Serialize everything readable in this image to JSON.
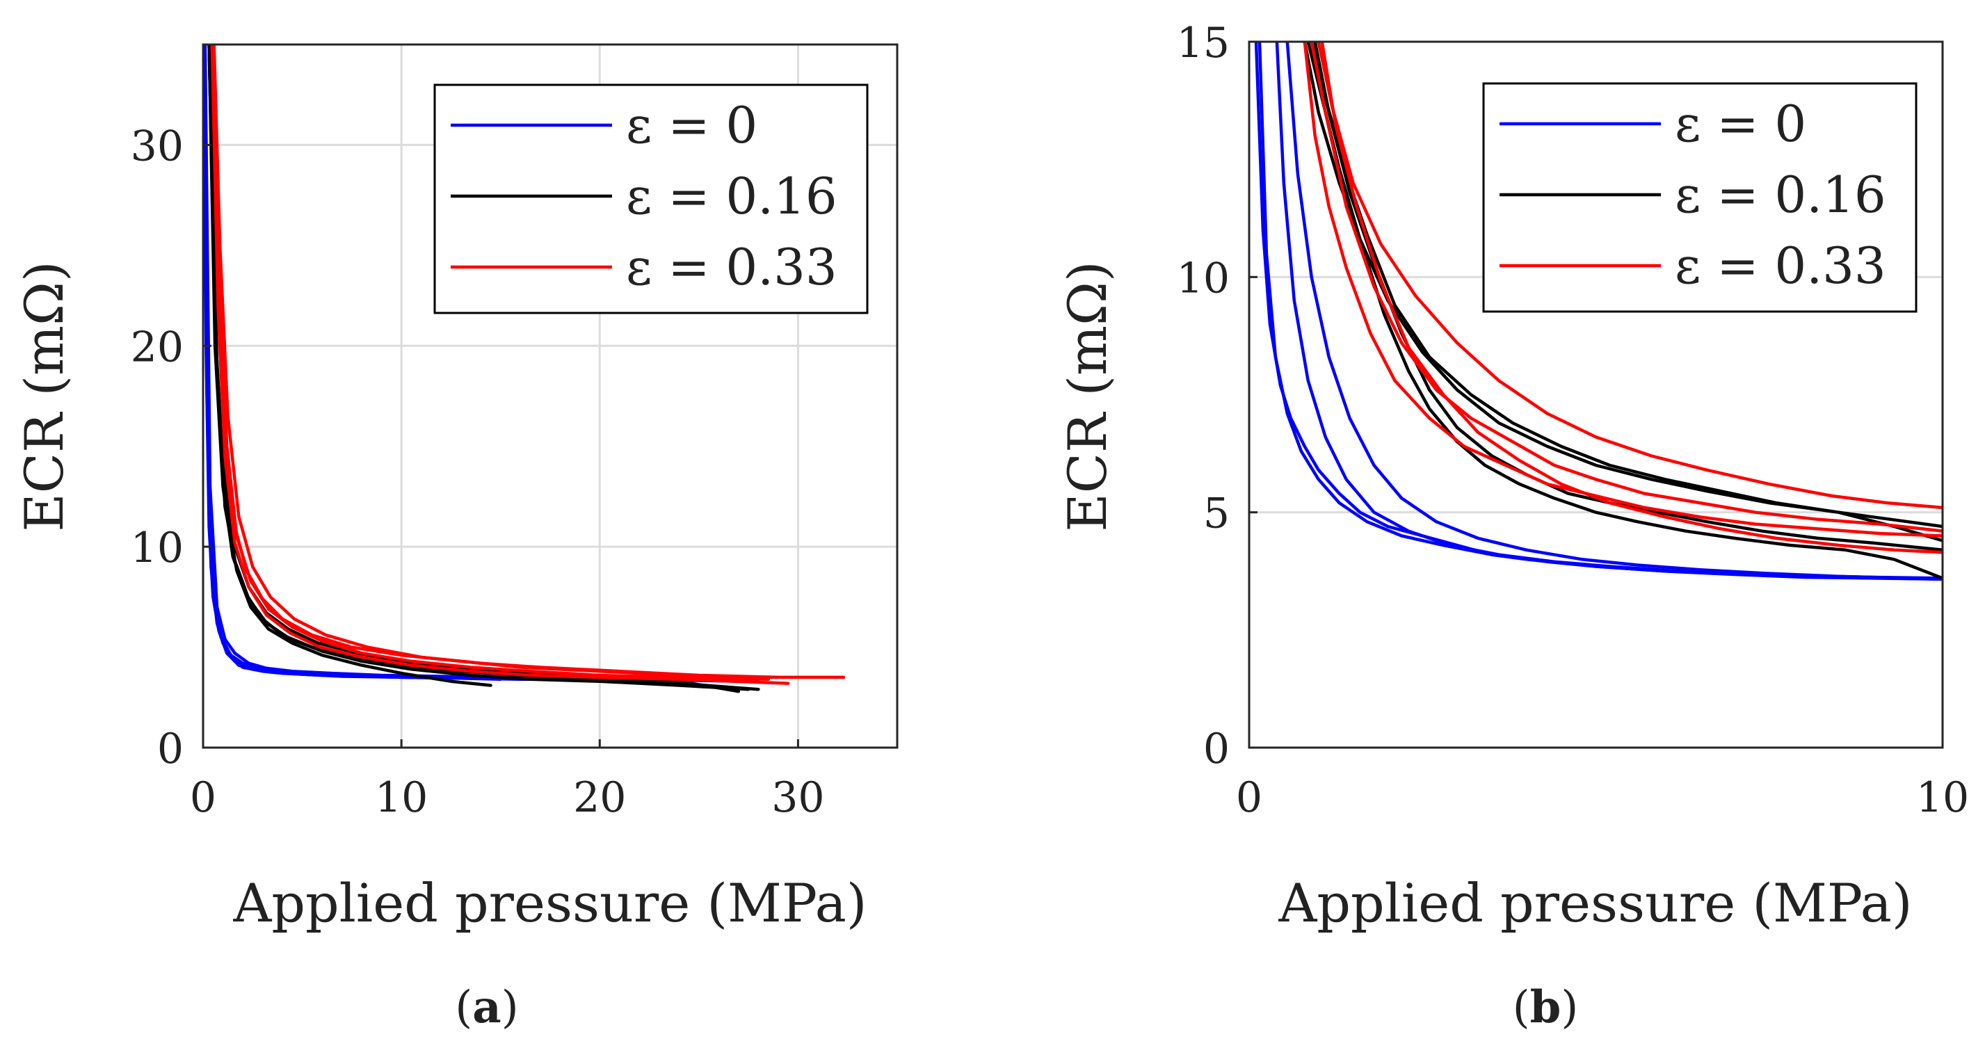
{
  "chart_data": [
    {
      "id": "a",
      "type": "line",
      "panel_label": "a",
      "xlabel": "Applied pressure (MPa)",
      "ylabel": "ECR (mΩ)",
      "xlim": [
        0,
        35
      ],
      "ylim": [
        0,
        35
      ],
      "xticks": [
        0,
        10,
        20,
        30
      ],
      "yticks": [
        0,
        10,
        20,
        30
      ],
      "grid": true,
      "legend": {
        "position": "top-right",
        "entries": [
          {
            "label": "ε = 0",
            "color": "#0000ff"
          },
          {
            "label": "ε = 0.16",
            "color": "#000000"
          },
          {
            "label": "ε = 0.33",
            "color": "#ff0000"
          }
        ]
      },
      "series": [
        {
          "name": "ε = 0",
          "color": "#0000ff",
          "x": [
            0.05,
            0.2,
            0.4,
            0.7,
            1.0,
            1.5,
            2.0,
            3,
            4,
            6,
            8,
            10,
            13,
            16,
            20,
            24,
            27.5
          ],
          "y": [
            35,
            17,
            9,
            6.2,
            5.2,
            4.4,
            4.0,
            3.8,
            3.7,
            3.6,
            3.55,
            3.5,
            3.45,
            3.4,
            3.4,
            3.35,
            3.3
          ]
        },
        {
          "name": "ε = 0",
          "color": "#0000ff",
          "x": [
            0.05,
            0.15,
            0.3,
            0.5,
            0.8,
            1.2,
            1.8,
            2.5,
            3.5,
            5,
            7,
            10,
            13,
            15
          ],
          "y": [
            35,
            20,
            11,
            7.5,
            5.8,
            4.7,
            4.1,
            3.9,
            3.75,
            3.65,
            3.55,
            3.5,
            3.45,
            3.4
          ]
        },
        {
          "name": "ε = 0",
          "color": "#0000ff",
          "x": [
            0.05,
            0.25,
            0.5,
            0.9,
            1.4,
            2.0,
            3,
            4,
            6,
            8,
            11,
            14,
            18,
            22,
            26
          ],
          "y": [
            35,
            15,
            8,
            5.5,
            4.6,
            4.2,
            3.9,
            3.8,
            3.7,
            3.6,
            3.55,
            3.5,
            3.45,
            3.4,
            3.35
          ]
        },
        {
          "name": "ε = 0",
          "color": "#0000ff",
          "x": [
            0.1,
            0.35,
            0.7,
            1.1,
            1.6,
            2.3,
            3.2,
            4.5,
            6.5,
            9,
            12,
            15,
            19,
            23,
            28
          ],
          "y": [
            35,
            13,
            7,
            5.4,
            4.7,
            4.2,
            3.95,
            3.8,
            3.7,
            3.6,
            3.55,
            3.5,
            3.45,
            3.4,
            3.4
          ]
        },
        {
          "name": "ε = 0.16",
          "color": "#000000",
          "x": [
            0.3,
            0.6,
            1.0,
            1.5,
            2.2,
            3.0,
            4.0,
            5.5,
            7.5,
            10,
            13,
            16,
            20,
            24,
            28
          ],
          "y": [
            35,
            20,
            13,
            9.5,
            7.6,
            6.4,
            5.6,
            5.0,
            4.5,
            4.1,
            3.8,
            3.6,
            3.4,
            3.2,
            2.9
          ]
        },
        {
          "name": "ε = 0.16",
          "color": "#000000",
          "x": [
            0.3,
            0.7,
            1.1,
            1.7,
            2.4,
            3.3,
            4.5,
            6.0,
            8.0,
            10,
            12.5,
            14.5
          ],
          "y": [
            35,
            19,
            12,
            8.8,
            7.0,
            5.9,
            5.2,
            4.6,
            4.1,
            3.7,
            3.3,
            3.1
          ]
        },
        {
          "name": "ε = 0.16",
          "color": "#000000",
          "x": [
            0.3,
            0.6,
            1.0,
            1.6,
            2.3,
            3.2,
            4.3,
            5.8,
            7.8,
            10,
            13,
            16,
            20,
            24,
            27
          ],
          "y": [
            35,
            21,
            14,
            10,
            8.0,
            6.7,
            5.9,
            5.2,
            4.7,
            4.3,
            3.9,
            3.7,
            3.5,
            3.3,
            2.8
          ]
        },
        {
          "name": "ε = 0.16",
          "color": "#000000",
          "x": [
            0.3,
            0.65,
            1.05,
            1.6,
            2.3,
            3.2,
            4.4,
            6,
            8,
            10.5,
            13.5,
            16.5,
            20,
            24,
            27.5
          ],
          "y": [
            35,
            20,
            13,
            9.3,
            7.4,
            6.2,
            5.4,
            4.8,
            4.3,
            3.9,
            3.6,
            3.4,
            3.3,
            3.1,
            2.9
          ]
        },
        {
          "name": "ε = 0.33",
          "color": "#ff0000",
          "x": [
            0.5,
            0.8,
            1.1,
            1.6,
            2.2,
            3.0,
            4.0,
            5.5,
            7.5,
            10,
            13,
            16,
            20,
            24,
            28,
            32.3
          ],
          "y": [
            35,
            24,
            16,
            11,
            8.8,
            7.4,
            6.4,
            5.6,
            5.0,
            4.6,
            4.3,
            4.0,
            3.8,
            3.6,
            3.5,
            3.5
          ]
        },
        {
          "name": "ε = 0.33",
          "color": "#ff0000",
          "x": [
            0.5,
            0.8,
            1.2,
            1.7,
            2.4,
            3.3,
            4.5,
            6,
            8,
            10.5,
            13.5,
            16.5,
            20,
            24,
            28.5
          ],
          "y": [
            35,
            23,
            15,
            10.5,
            8.3,
            6.9,
            6.0,
            5.3,
            4.7,
            4.3,
            4.0,
            3.8,
            3.6,
            3.5,
            3.4
          ]
        },
        {
          "name": "ε = 0.33",
          "color": "#ff0000",
          "x": [
            0.45,
            0.75,
            1.1,
            1.6,
            2.3,
            3.2,
            4.4,
            5.9,
            8,
            10.5,
            13.5,
            16.5,
            20,
            24,
            29.5
          ],
          "y": [
            35,
            22,
            14.5,
            10.2,
            8.0,
            6.6,
            5.7,
            5.0,
            4.5,
            4.1,
            3.8,
            3.6,
            3.5,
            3.4,
            3.2
          ]
        },
        {
          "name": "ε = 0.33",
          "color": "#ff0000",
          "x": [
            0.55,
            0.85,
            1.25,
            1.8,
            2.5,
            3.4,
            4.6,
            6.2,
            8.3,
            11,
            14,
            17,
            21,
            25,
            29
          ],
          "y": [
            35,
            25,
            16.5,
            11.5,
            9.0,
            7.5,
            6.4,
            5.6,
            5.0,
            4.5,
            4.2,
            4.0,
            3.8,
            3.6,
            3.5
          ]
        }
      ]
    },
    {
      "id": "b",
      "type": "line",
      "panel_label": "b",
      "xlabel": "Applied pressure (MPa)",
      "ylabel": "ECR (mΩ)",
      "xlim": [
        0,
        10
      ],
      "ylim": [
        0,
        15
      ],
      "xticks": [
        0,
        10
      ],
      "yticks": [
        0,
        5,
        10,
        15
      ],
      "grid": true,
      "legend": {
        "position": "top-right",
        "entries": [
          {
            "label": "ε = 0",
            "color": "#0000ff"
          },
          {
            "label": "ε = 0.16",
            "color": "#000000"
          },
          {
            "label": "ε = 0.33",
            "color": "#ff0000"
          }
        ]
      },
      "series": [
        {
          "name": "ε = 0",
          "color": "#0000ff",
          "x": [
            0.1,
            0.2,
            0.3,
            0.45,
            0.6,
            0.8,
            1.0,
            1.3,
            1.6,
            2.0,
            2.5,
            3.0,
            3.5,
            4.0,
            5,
            6,
            7,
            8,
            9,
            10
          ],
          "y": [
            15,
            11,
            9,
            7.7,
            7.0,
            6.4,
            5.9,
            5.4,
            5.0,
            4.7,
            4.5,
            4.3,
            4.1,
            4.0,
            3.85,
            3.75,
            3.7,
            3.65,
            3.62,
            3.6
          ]
        },
        {
          "name": "ε = 0",
          "color": "#0000ff",
          "x": [
            0.15,
            0.25,
            0.38,
            0.55,
            0.75,
            1.0,
            1.3,
            1.7,
            2.2,
            2.8,
            3.5,
            4.3,
            5,
            6,
            7,
            8,
            9,
            10
          ],
          "y": [
            15,
            10.5,
            8.3,
            7.1,
            6.3,
            5.7,
            5.2,
            4.8,
            4.5,
            4.3,
            4.1,
            3.95,
            3.85,
            3.75,
            3.68,
            3.62,
            3.6,
            3.58
          ]
        },
        {
          "name": "ε = 0",
          "color": "#0000ff",
          "x": [
            0.4,
            0.5,
            0.65,
            0.85,
            1.1,
            1.4,
            1.8,
            2.3,
            2.9,
            3.6,
            4.4,
            5.2,
            6.2,
            7.2,
            8.2,
            9.2,
            10
          ],
          "y": [
            15,
            12,
            9.5,
            7.8,
            6.6,
            5.7,
            5.0,
            4.6,
            4.3,
            4.1,
            3.95,
            3.85,
            3.75,
            3.68,
            3.62,
            3.6,
            3.58
          ]
        },
        {
          "name": "ε = 0",
          "color": "#0000ff",
          "x": [
            0.55,
            0.7,
            0.9,
            1.15,
            1.45,
            1.8,
            2.2,
            2.7,
            3.3,
            4.0,
            4.8,
            5.6,
            6.5,
            7.5,
            8.5,
            9.5,
            10
          ],
          "y": [
            15,
            12.2,
            10,
            8.3,
            7.0,
            6.0,
            5.3,
            4.8,
            4.45,
            4.2,
            4.0,
            3.88,
            3.78,
            3.7,
            3.64,
            3.6,
            3.58
          ]
        },
        {
          "name": "ε = 0.16",
          "color": "#000000",
          "x": [
            0.8,
            1.0,
            1.3,
            1.6,
            2.0,
            2.5,
            3.0,
            3.6,
            4.3,
            5.0,
            5.8,
            6.6,
            7.5,
            8.5,
            9.5,
            10
          ],
          "y": [
            15,
            13.5,
            12,
            10.8,
            9.5,
            8.4,
            7.6,
            6.9,
            6.4,
            6.0,
            5.7,
            5.45,
            5.2,
            5.0,
            4.8,
            4.7
          ]
        },
        {
          "name": "ε = 0.16",
          "color": "#000000",
          "x": [
            0.85,
            1.05,
            1.3,
            1.6,
            1.95,
            2.3,
            2.6,
            3.0,
            3.4,
            3.9,
            4.4,
            5.0,
            5.6,
            6.3,
            7,
            7.8,
            8.6,
            9.3,
            10
          ],
          "y": [
            15,
            13.8,
            12.3,
            10.8,
            9.2,
            8.0,
            7.2,
            6.5,
            6.0,
            5.6,
            5.3,
            5.0,
            4.8,
            4.6,
            4.45,
            4.3,
            4.2,
            4.0,
            3.6
          ]
        },
        {
          "name": "ε = 0.16",
          "color": "#000000",
          "x": [
            0.9,
            1.1,
            1.4,
            1.7,
            2.1,
            2.6,
            3.2,
            3.8,
            4.5,
            5.2,
            6.0,
            6.8,
            7.6,
            8.5,
            9.3,
            10
          ],
          "y": [
            15,
            13.8,
            12.2,
            10.9,
            9.4,
            8.3,
            7.5,
            6.9,
            6.4,
            6.0,
            5.7,
            5.45,
            5.2,
            5.0,
            4.7,
            4.4
          ]
        },
        {
          "name": "ε = 0.16",
          "color": "#000000",
          "x": [
            0.95,
            1.15,
            1.45,
            1.8,
            2.2,
            2.6,
            3.0,
            3.5,
            4.0,
            4.6,
            5.2,
            5.9,
            6.6,
            7.4,
            8.2,
            9.0,
            10
          ],
          "y": [
            15,
            13.5,
            11.8,
            10.3,
            8.8,
            7.6,
            6.8,
            6.2,
            5.8,
            5.4,
            5.2,
            5.0,
            4.8,
            4.6,
            4.45,
            4.35,
            4.2
          ]
        },
        {
          "name": "ε = 0.33",
          "color": "#ff0000",
          "x": [
            1.0,
            1.2,
            1.5,
            1.9,
            2.4,
            3.0,
            3.6,
            4.3,
            5.0,
            5.8,
            6.6,
            7.5,
            8.4,
            9.2,
            10
          ],
          "y": [
            15,
            13.6,
            12.0,
            10.7,
            9.6,
            8.6,
            7.8,
            7.1,
            6.6,
            6.2,
            5.9,
            5.6,
            5.35,
            5.2,
            5.1
          ]
        },
        {
          "name": "ε = 0.33",
          "color": "#ff0000",
          "x": [
            0.9,
            1.1,
            1.4,
            1.8,
            2.2,
            2.7,
            3.2,
            3.8,
            4.4,
            5.0,
            5.7,
            6.5,
            7.3,
            8.2,
            9.1,
            10
          ],
          "y": [
            15,
            13.5,
            11.5,
            9.8,
            8.6,
            7.6,
            7.0,
            6.5,
            6.0,
            5.7,
            5.4,
            5.2,
            5.0,
            4.85,
            4.75,
            4.6
          ]
        },
        {
          "name": "ε = 0.33",
          "color": "#ff0000",
          "x": [
            0.8,
            0.95,
            1.15,
            1.4,
            1.75,
            2.1,
            2.6,
            3.1,
            3.7,
            4.3,
            5.0,
            5.7,
            6.5,
            7.3,
            8.2,
            9.1,
            10
          ],
          "y": [
            15,
            13,
            11.5,
            10.2,
            8.8,
            7.8,
            7.0,
            6.4,
            6.0,
            5.6,
            5.35,
            5.1,
            4.9,
            4.75,
            4.65,
            4.55,
            4.5
          ]
        },
        {
          "name": "ε = 0.33",
          "color": "#ff0000",
          "x": [
            1.05,
            1.25,
            1.55,
            1.9,
            2.3,
            2.8,
            3.3,
            3.9,
            4.5,
            5.2,
            6.0,
            6.8,
            7.6,
            8.5,
            9.3,
            10
          ],
          "y": [
            15,
            13.2,
            11.5,
            9.9,
            8.5,
            7.5,
            6.7,
            6.1,
            5.6,
            5.2,
            4.9,
            4.65,
            4.45,
            4.3,
            4.2,
            4.15
          ]
        }
      ]
    }
  ]
}
